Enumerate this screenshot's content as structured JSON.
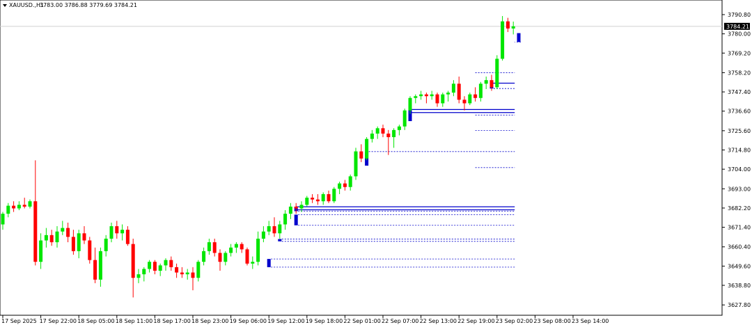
{
  "header": {
    "symbol": "XAUUSD.,H1",
    "ohlc": "3783.00 3786.88 3779.69 3784.21"
  },
  "chart_data": {
    "type": "candlestick",
    "title": "XAUUSD.,H1",
    "ylim": [
      3622,
      3799
    ],
    "y_ticks": [
      3790.8,
      3780.0,
      3769.2,
      3758.2,
      3747.4,
      3736.6,
      3725.6,
      3714.8,
      3704.0,
      3693.0,
      3682.2,
      3671.4,
      3660.4,
      3649.6,
      3638.8,
      3627.8
    ],
    "y_tick_labels": [
      "3790.80",
      "3780.00",
      "3769.20",
      "3758.20",
      "3747.40",
      "3736.60",
      "3725.60",
      "3714.80",
      "3704.00",
      "3693.00",
      "3682.20",
      "3671.40",
      "3660.40",
      "3649.60",
      "3638.80",
      "3627.80"
    ],
    "x_tick_labels": [
      "17 Sep 2025",
      "17 Sep 22:00",
      "18 Sep 05:00",
      "18 Sep 11:00",
      "18 Sep 17:00",
      "18 Sep 23:00",
      "19 Sep 06:00",
      "19 Sep 12:00",
      "19 Sep 18:00",
      "22 Sep 01:00",
      "22 Sep 07:00",
      "22 Sep 13:00",
      "22 Sep 19:00",
      "23 Sep 02:00",
      "23 Sep 08:00",
      "23 Sep 14:00"
    ],
    "x_tick_index": [
      0,
      7,
      14,
      21,
      28,
      35,
      42,
      49,
      56,
      63,
      70,
      77,
      84,
      91,
      98,
      105
    ],
    "current_price": 3784.21,
    "current_price_label": "3784.21",
    "colors": {
      "up": "#00e600",
      "down": "#ff0000",
      "zone": "#0000cc",
      "grid": "#d0d0d0",
      "price_tag": "#000000"
    },
    "ohlc": [
      [
        3673.0,
        3680.0,
        3670.0,
        3679.0
      ],
      [
        3679.0,
        3685.0,
        3677.0,
        3683.5
      ],
      [
        3683.5,
        3686.0,
        3680.0,
        3682.0
      ],
      [
        3682.0,
        3686.0,
        3681.0,
        3684.0
      ],
      [
        3684.0,
        3688.0,
        3682.0,
        3683.0
      ],
      [
        3683.0,
        3687.0,
        3682.0,
        3686.0
      ],
      [
        3686.0,
        3709.0,
        3650.0,
        3652.0
      ],
      [
        3652.0,
        3668.0,
        3648.0,
        3664.0
      ],
      [
        3664.0,
        3671.0,
        3660.0,
        3667.0
      ],
      [
        3667.0,
        3670.0,
        3661.0,
        3663.0
      ],
      [
        3663.0,
        3672.0,
        3660.0,
        3669.0
      ],
      [
        3669.0,
        3675.0,
        3667.0,
        3671.0
      ],
      [
        3671.0,
        3674.0,
        3663.0,
        3666.0
      ],
      [
        3666.0,
        3670.0,
        3656.0,
        3658.0
      ],
      [
        3658.0,
        3670.0,
        3654.0,
        3668.0
      ],
      [
        3668.0,
        3672.0,
        3662.0,
        3664.0
      ],
      [
        3664.0,
        3666.0,
        3651.0,
        3653.0
      ],
      [
        3653.0,
        3660.0,
        3640.0,
        3642.0
      ],
      [
        3642.0,
        3660.0,
        3638.0,
        3658.0
      ],
      [
        3658.0,
        3667.0,
        3655.0,
        3665.0
      ],
      [
        3665.0,
        3674.0,
        3663.0,
        3672.0
      ],
      [
        3672.0,
        3675.0,
        3665.0,
        3668.0
      ],
      [
        3668.0,
        3673.0,
        3664.0,
        3670.0
      ],
      [
        3670.0,
        3672.0,
        3661.0,
        3662.0
      ],
      [
        3662.0,
        3665.0,
        3632.0,
        3643.0
      ],
      [
        3643.0,
        3648.0,
        3640.0,
        3645.0
      ],
      [
        3645.0,
        3649.0,
        3641.0,
        3648.0
      ],
      [
        3648.0,
        3653.0,
        3646.0,
        3652.0
      ],
      [
        3652.0,
        3653.0,
        3645.0,
        3647.0
      ],
      [
        3647.0,
        3651.0,
        3644.0,
        3650.0
      ],
      [
        3650.0,
        3654.0,
        3647.0,
        3653.0
      ],
      [
        3653.0,
        3655.0,
        3647.0,
        3649.0
      ],
      [
        3649.0,
        3651.0,
        3643.0,
        3646.0
      ],
      [
        3646.0,
        3649.0,
        3643.0,
        3645.0
      ],
      [
        3645.0,
        3648.0,
        3642.0,
        3646.0
      ],
      [
        3646.0,
        3649.0,
        3636.0,
        3643.0
      ],
      [
        3643.0,
        3653.0,
        3641.0,
        3652.0
      ],
      [
        3652.0,
        3660.0,
        3650.0,
        3658.0
      ],
      [
        3658.0,
        3665.0,
        3656.0,
        3663.0
      ],
      [
        3663.0,
        3665.0,
        3655.0,
        3657.0
      ],
      [
        3657.0,
        3659.0,
        3647.0,
        3652.0
      ],
      [
        3652.0,
        3658.0,
        3650.0,
        3657.0
      ],
      [
        3657.0,
        3662.0,
        3655.0,
        3660.0
      ],
      [
        3660.0,
        3663.0,
        3657.0,
        3662.0
      ],
      [
        3662.0,
        3663.0,
        3657.0,
        3659.0
      ],
      [
        3659.0,
        3660.0,
        3650.0,
        3651.0
      ],
      [
        3651.0,
        3655.0,
        3648.0,
        3652.0
      ],
      [
        3652.0,
        3669.0,
        3650.0,
        3665.0
      ],
      [
        3665.0,
        3672.0,
        3663.0,
        3669.0
      ],
      [
        3669.0,
        3675.0,
        3667.0,
        3672.0
      ],
      [
        3672.0,
        3677.0,
        3666.0,
        3668.0
      ],
      [
        3668.0,
        3675.0,
        3665.0,
        3673.0
      ],
      [
        3673.0,
        3681.0,
        3670.0,
        3679.0
      ],
      [
        3679.0,
        3685.0,
        3676.0,
        3683.0
      ],
      [
        3683.0,
        3685.0,
        3679.0,
        3682.0
      ],
      [
        3682.0,
        3686.0,
        3680.0,
        3684.0
      ],
      [
        3684.0,
        3689.0,
        3683.0,
        3688.0
      ],
      [
        3688.0,
        3690.0,
        3685.0,
        3687.0
      ],
      [
        3687.0,
        3690.0,
        3684.0,
        3686.0
      ],
      [
        3686.0,
        3691.0,
        3684.0,
        3690.0
      ],
      [
        3690.0,
        3692.0,
        3685.0,
        3686.0
      ],
      [
        3686.0,
        3694.0,
        3685.0,
        3693.0
      ],
      [
        3693.0,
        3697.0,
        3690.0,
        3696.0
      ],
      [
        3696.0,
        3698.0,
        3692.0,
        3694.0
      ],
      [
        3694.0,
        3701.0,
        3692.0,
        3700.0
      ],
      [
        3700.0,
        3716.0,
        3698.0,
        3714.0
      ],
      [
        3714.0,
        3718.0,
        3708.0,
        3710.0
      ],
      [
        3710.0,
        3722.0,
        3709.0,
        3721.0
      ],
      [
        3721.0,
        3726.0,
        3719.0,
        3724.0
      ],
      [
        3724.0,
        3728.0,
        3721.0,
        3727.0
      ],
      [
        3727.0,
        3729.0,
        3722.0,
        3724.0
      ],
      [
        3724.0,
        3726.0,
        3712.0,
        3722.0
      ],
      [
        3722.0,
        3727.0,
        3716.0,
        3726.0
      ],
      [
        3726.0,
        3729.0,
        3723.0,
        3728.0
      ],
      [
        3728.0,
        3738.0,
        3726.0,
        3737.0
      ],
      [
        3737.0,
        3745.0,
        3735.0,
        3744.0
      ],
      [
        3744.0,
        3746.0,
        3741.0,
        3745.0
      ],
      [
        3745.0,
        3748.0,
        3743.0,
        3746.0
      ],
      [
        3746.0,
        3747.0,
        3741.0,
        3745.0
      ],
      [
        3745.0,
        3748.0,
        3743.0,
        3746.0
      ],
      [
        3746.0,
        3747.0,
        3739.0,
        3741.0
      ],
      [
        3741.0,
        3747.0,
        3739.0,
        3746.0
      ],
      [
        3746.0,
        3748.0,
        3742.0,
        3747.0
      ],
      [
        3747.0,
        3754.0,
        3745.0,
        3752.0
      ],
      [
        3752.0,
        3756.0,
        3741.0,
        3743.0
      ],
      [
        3743.0,
        3745.0,
        3737.0,
        3741.0
      ],
      [
        3741.0,
        3747.0,
        3740.0,
        3746.0
      ],
      [
        3746.0,
        3750.0,
        3742.0,
        3744.0
      ],
      [
        3744.0,
        3753.0,
        3742.0,
        3752.0
      ],
      [
        3752.0,
        3756.0,
        3749.0,
        3754.0
      ],
      [
        3754.0,
        3757.0,
        3748.0,
        3750.0
      ],
      [
        3750.0,
        3768.0,
        3749.0,
        3766.0
      ],
      [
        3766.0,
        3790.0,
        3765.0,
        3787.0
      ],
      [
        3787.0,
        3789.0,
        3781.0,
        3783.0
      ],
      [
        3783.0,
        3786.88,
        3779.69,
        3784.21
      ]
    ],
    "zones": [
      {
        "bar": 95,
        "y1": 3780.4,
        "y2": 3775.4
      },
      {
        "bar": 90,
        "y1": 3752.3,
        "y2": 3749.3
      },
      {
        "bar": 75,
        "y1": 3737.5,
        "y2": 3731.0
      },
      {
        "bar": 67,
        "y1": 3713.9,
        "y2": 3706.0
      },
      {
        "bar": 54,
        "y1": 3682.9,
        "y2": 3680.4
      },
      {
        "bar": 54,
        "y1": 3678.5,
        "y2": 3672.5
      },
      {
        "bar": 51,
        "y1": 3664.8,
        "y2": 3663.5
      },
      {
        "bar": 49,
        "y1": 3653.6,
        "y2": 3649.0
      }
    ],
    "solid_levels": [
      3752.3,
      3737.5,
      3735.8,
      3682.9,
      3681.2
    ],
    "dashed_levels": [
      3775.4,
      3758.2,
      3749.3,
      3734.4,
      3725.8,
      3713.9,
      3704.9,
      3680.4,
      3678.5,
      3672.5,
      3664.8,
      3663.5,
      3653.6,
      3649.0
    ]
  }
}
